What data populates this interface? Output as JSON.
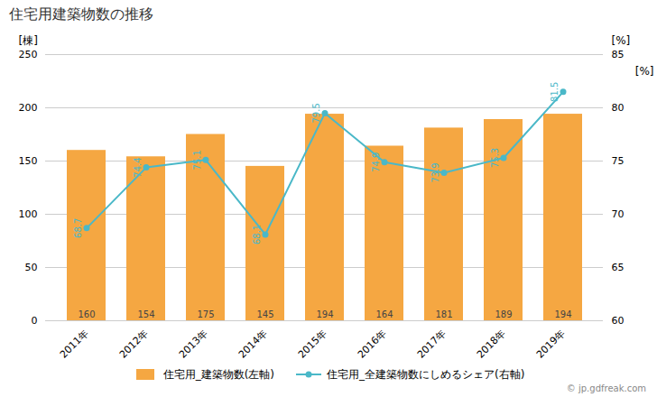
{
  "chart_data": {
    "type": "bar",
    "title": "住宅用建築物数の推移",
    "categories": [
      "2011年",
      "2012年",
      "2013年",
      "2014年",
      "2015年",
      "2016年",
      "2017年",
      "2018年",
      "2019年"
    ],
    "series": [
      {
        "name": "住宅用_建築物数(左軸)",
        "type": "bar",
        "color": "#f5a742",
        "values": [
          160,
          154,
          175,
          145,
          194,
          164,
          181,
          189,
          194
        ]
      },
      {
        "name": "住宅用_全建築物数にしめるシェア(右軸)",
        "type": "line",
        "axis": "y2",
        "color": "#4ab8c8",
        "marker": "circle",
        "values": [
          68.7,
          74.4,
          75.1,
          68.1,
          79.5,
          74.9,
          73.9,
          75.3,
          81.5
        ]
      }
    ],
    "ylabel": "[棟]",
    "y2label": "[%]",
    "ylim": [
      0,
      250
    ],
    "yticks": [
      0,
      50,
      100,
      150,
      200,
      250
    ],
    "y2lim": [
      60,
      85
    ],
    "y2ticks": [
      60,
      65,
      70,
      75,
      80,
      85
    ],
    "grid": true,
    "legend": "bottom",
    "data_labels": true,
    "annotations": [
      "[%]"
    ],
    "caption": "© jp.gdfreak.com"
  }
}
